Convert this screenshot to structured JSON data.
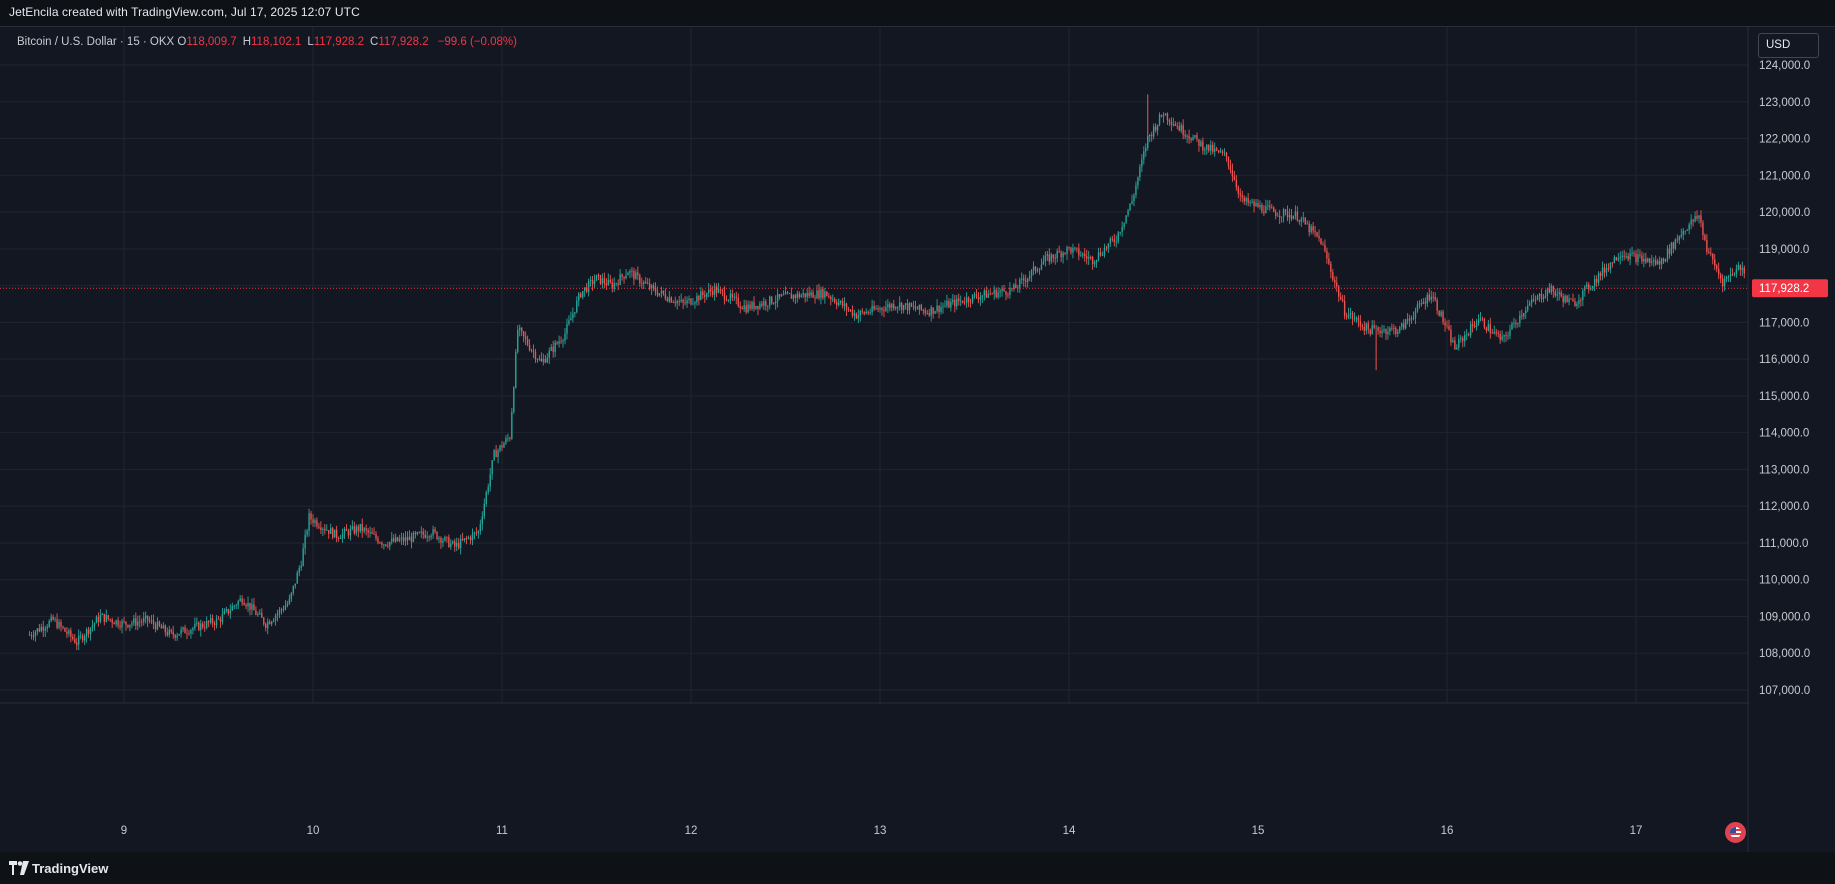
{
  "attribution": "JetEncila created with TradingView.com, Jul 17, 2025 12:07 UTC",
  "legend": {
    "symbol": "Bitcoin / U.S. Dollar · 15 · OKX",
    "open_label": "O",
    "open_value": "118,009.7",
    "high_label": "H",
    "high_value": "118,102.1",
    "low_label": "L",
    "low_value": "117,928.2",
    "close_label": "C",
    "close_value": "117,928.2",
    "change": "−99.6 (−0.08%)"
  },
  "currency": "USD",
  "brand": "TradingView",
  "colors": {
    "background": "#131722",
    "frame": "#0e1116",
    "grid": "#1f2430",
    "up": "#26a69a",
    "down": "#ef5350",
    "text": "#d1d4dc",
    "price_tag": "#f23645"
  },
  "icons": [
    "tradingview-logo-icon",
    "us-flag-icon"
  ],
  "chart_data": {
    "type": "candlestick",
    "symbol": "Bitcoin / U.S. Dollar",
    "interval": "15",
    "exchange": "OKX",
    "ylim": [
      106700,
      124700
    ],
    "y_ticks": [
      "107,000.0",
      "108,000.0",
      "109,000.0",
      "110,000.0",
      "111,000.0",
      "112,000.0",
      "113,000.0",
      "114,000.0",
      "115,000.0",
      "116,000.0",
      "117,000.0",
      "118,000.0",
      "119,000.0",
      "120,000.0",
      "121,000.0",
      "122,000.0",
      "123,000.0",
      "124,000.0"
    ],
    "x_ticks": [
      "9",
      "10",
      "11",
      "12",
      "13",
      "14",
      "15",
      "16",
      "17"
    ],
    "x_range": [
      "Jul 8 ~12:00",
      "Jul 17 12:00"
    ],
    "last_price": 117928.2,
    "last_price_label": "117,928.2",
    "grid": true,
    "close_path": [
      [
        "Jul 8 12:00",
        108500
      ],
      [
        "Jul 8 15:00",
        108900
      ],
      [
        "Jul 8 18:00",
        108300
      ],
      [
        "Jul 8 21:00",
        109000
      ],
      [
        "Jul 9 00:00",
        108800
      ],
      [
        "Jul 9 03:00",
        108900
      ],
      [
        "Jul 9 06:00",
        108500
      ],
      [
        "Jul 9 09:00",
        108700
      ],
      [
        "Jul 9 12:00",
        108900
      ],
      [
        "Jul 9 15:00",
        109500
      ],
      [
        "Jul 9 18:00",
        108800
      ],
      [
        "Jul 9 21:00",
        109400
      ],
      [
        "Jul 9 22:30",
        110500
      ],
      [
        "Jul 9 23:30",
        111700
      ],
      [
        "Jul 10 03:00",
        111200
      ],
      [
        "Jul 10 06:00",
        111400
      ],
      [
        "Jul 10 09:00",
        111000
      ],
      [
        "Jul 10 12:00",
        111100
      ],
      [
        "Jul 10 15:00",
        111300
      ],
      [
        "Jul 10 18:00",
        110900
      ],
      [
        "Jul 10 21:00",
        111300
      ],
      [
        "Jul 10 23:00",
        113400
      ],
      [
        "Jul 11 01:00",
        113900
      ],
      [
        "Jul 11 02:00",
        116800
      ],
      [
        "Jul 11 05:00",
        115900
      ],
      [
        "Jul 11 08:00",
        116700
      ],
      [
        "Jul 11 10:00",
        117800
      ],
      [
        "Jul 11 12:00",
        118200
      ],
      [
        "Jul 11 14:00",
        118000
      ],
      [
        "Jul 11 16:00",
        118400
      ],
      [
        "Jul 11 19:00",
        117900
      ],
      [
        "Jul 11 23:00",
        117500
      ],
      [
        "Jul 12 03:00",
        117900
      ],
      [
        "Jul 12 07:00",
        117400
      ],
      [
        "Jul 12 12:00",
        117700
      ],
      [
        "Jul 12 17:00",
        117800
      ],
      [
        "Jul 12 21:00",
        117200
      ],
      [
        "Jul 13 02:00",
        117500
      ],
      [
        "Jul 13 06:00",
        117300
      ],
      [
        "Jul 13 12:00",
        117700
      ],
      [
        "Jul 13 17:00",
        117900
      ],
      [
        "Jul 13 21:00",
        118700
      ],
      [
        "Jul 14 00:00",
        119000
      ],
      [
        "Jul 14 03:00",
        118700
      ],
      [
        "Jul 14 06:00",
        119300
      ],
      [
        "Jul 14 08:00",
        120300
      ],
      [
        "Jul 14 10:00",
        122000
      ],
      [
        "Jul 14 12:00",
        122700
      ],
      [
        "Jul 14 14:00",
        122300
      ],
      [
        "Jul 14 17:00",
        121800
      ],
      [
        "Jul 14 20:00",
        121500
      ],
      [
        "Jul 14 22:00",
        120300
      ],
      [
        "Jul 15 02:00",
        120000
      ],
      [
        "Jul 15 05:00",
        119900
      ],
      [
        "Jul 15 08:00",
        119200
      ],
      [
        "Jul 15 11:00",
        117300
      ],
      [
        "Jul 15 14:00",
        116800
      ],
      [
        "Jul 15 18:00",
        116800
      ],
      [
        "Jul 15 22:00",
        117800
      ],
      [
        "Jul 16 01:00",
        116300
      ],
      [
        "Jul 16 04:00",
        117100
      ],
      [
        "Jul 16 07:00",
        116500
      ],
      [
        "Jul 16 10:00",
        117400
      ],
      [
        "Jul 16 13:00",
        117900
      ],
      [
        "Jul 16 16:00",
        117500
      ],
      [
        "Jul 16 19:00",
        118200
      ],
      [
        "Jul 16 22:00",
        118900
      ],
      [
        "Jul 17 01:00",
        118700
      ],
      [
        "Jul 17 03:00",
        118600
      ],
      [
        "Jul 17 06:00",
        119500
      ],
      [
        "Jul 17 08:00",
        119900
      ],
      [
        "Jul 17 09:00",
        119000
      ],
      [
        "Jul 17 11:00",
        118100
      ],
      [
        "Jul 17 13:00",
        118500
      ],
      [
        "Jul 17 16:00",
        118200
      ],
      [
        "Jul 17 19:00",
        118500
      ],
      [
        "Jul 17 20:30",
        119100
      ],
      [
        "Jul 17 22:00",
        118100
      ],
      [
        "Jul 17 23:00",
        117928.2
      ]
    ],
    "notable_highs": [
      [
        "Jul 14 ~10:00",
        123200
      ]
    ],
    "notable_lows": [
      [
        "Jul 8 ~18:00",
        108200
      ],
      [
        "Jul 15 ~15:00",
        115700
      ]
    ]
  }
}
